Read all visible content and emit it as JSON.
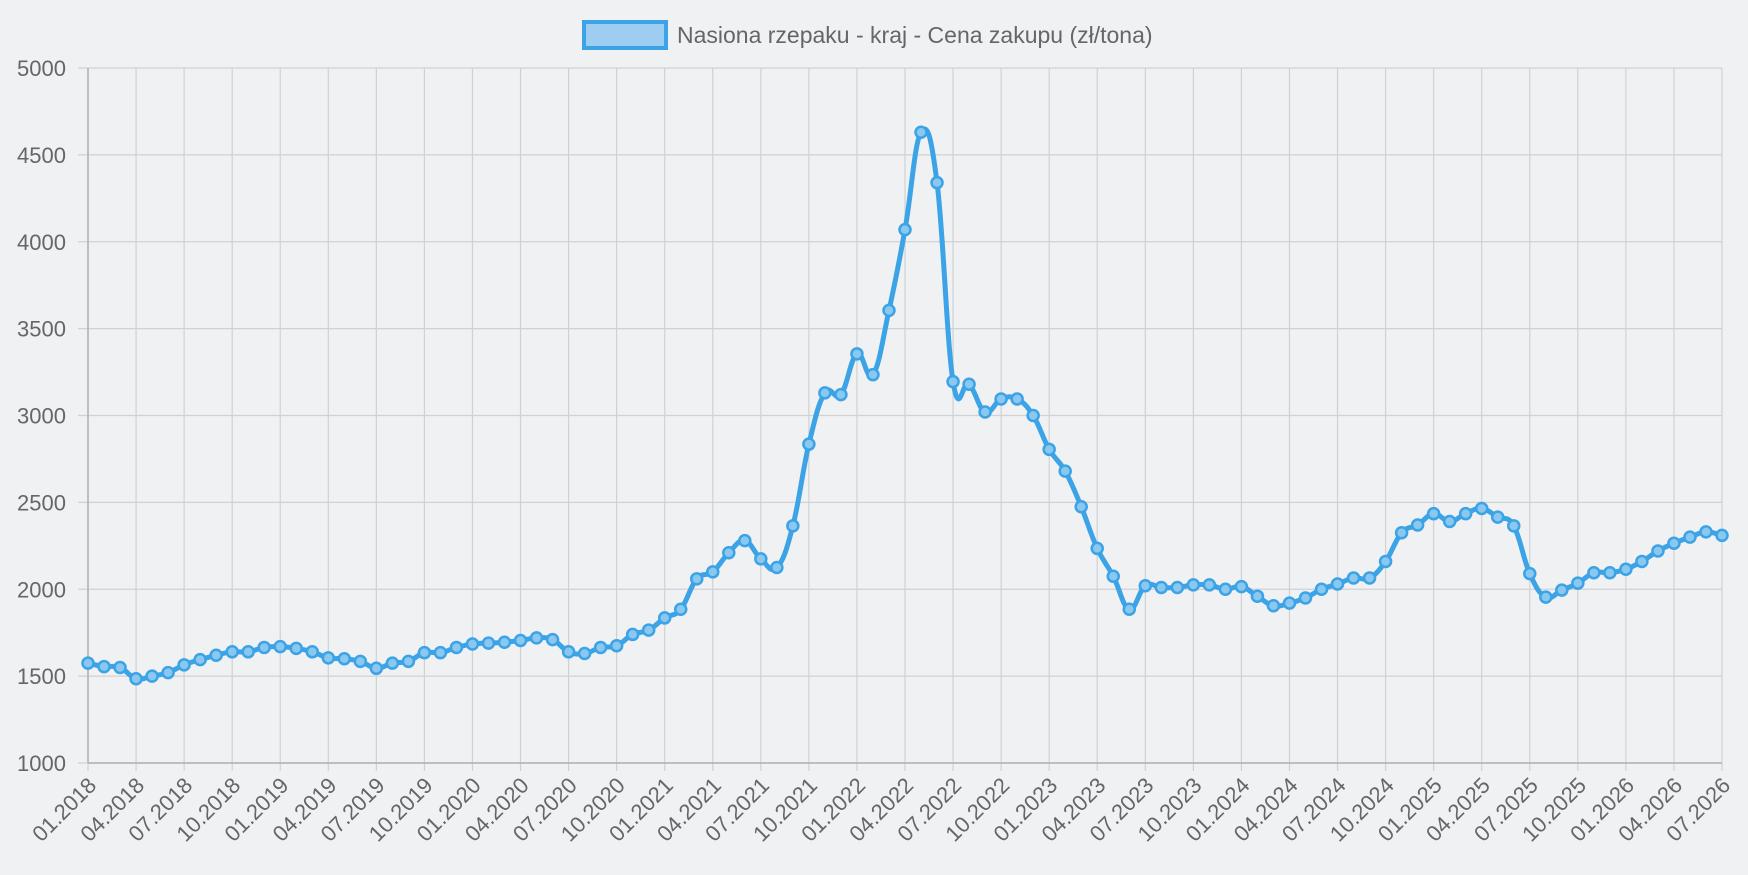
{
  "colors": {
    "line": "#3ba3e6",
    "point_fill": "#8ac8f0",
    "legend_fill": "#9dcdf1",
    "grid": "#cfd1d4",
    "axis": "#aeb1b5",
    "text": "#666666"
  },
  "chart_data": {
    "type": "line",
    "legend": {
      "label": "Nasiona rzepaku - kraj - Cena zakupu (zł/tona)",
      "position": "top"
    },
    "grid": true,
    "ylim": [
      1000,
      5000
    ],
    "yticks": [
      1000,
      1500,
      2000,
      2500,
      3000,
      3500,
      4000,
      4500,
      5000
    ],
    "x_labels": [
      "01.2018",
      "04.2018",
      "07.2018",
      "10.2018",
      "01.2019",
      "04.2019",
      "07.2019",
      "10.2019",
      "01.2020",
      "04.2020",
      "07.2020",
      "10.2020",
      "01.2021",
      "04.2021",
      "07.2021",
      "10.2021",
      "01.2022",
      "04.2022",
      "07.2022",
      "10.2022",
      "01.2023",
      "04.2023",
      "07.2023",
      "10.2023",
      "01.2024",
      "04.2024",
      "07.2024",
      "10.2024",
      "01.2025",
      "04.2025",
      "07.2025",
      "10.2025",
      "01.2026",
      "04.2026",
      "07.2026"
    ],
    "x_start": "01.2018",
    "series": [
      {
        "name": "Nasiona rzepaku - kraj - Cena zakupu (zł/tona)",
        "values": [
          1575,
          1555,
          1550,
          1485,
          1500,
          1520,
          1565,
          1595,
          1620,
          1640,
          1640,
          1665,
          1670,
          1660,
          1640,
          1605,
          1600,
          1585,
          1545,
          1575,
          1585,
          1635,
          1635,
          1665,
          1685,
          1690,
          1695,
          1705,
          1720,
          1710,
          1640,
          1630,
          1665,
          1675,
          1740,
          1765,
          1835,
          1885,
          2060,
          2100,
          2210,
          2280,
          2175,
          2125,
          2365,
          2835,
          3130,
          3120,
          3355,
          3235,
          3605,
          4070,
          4630,
          4340,
          3195,
          3180,
          3020,
          3095,
          3095,
          3000,
          2805,
          2680,
          2475,
          2235,
          2075,
          1885,
          2020,
          2010,
          2010,
          2025,
          2025,
          2000,
          2015,
          1960,
          1905,
          1920,
          1950,
          2000,
          2030,
          2065,
          2065,
          2160,
          2325,
          2370,
          2435,
          2390,
          2435,
          2465,
          2415,
          2365,
          2090,
          1955,
          1995,
          2035,
          2095,
          2095,
          2115,
          2160,
          2220,
          2265,
          2300,
          2330,
          2310
        ]
      }
    ]
  }
}
